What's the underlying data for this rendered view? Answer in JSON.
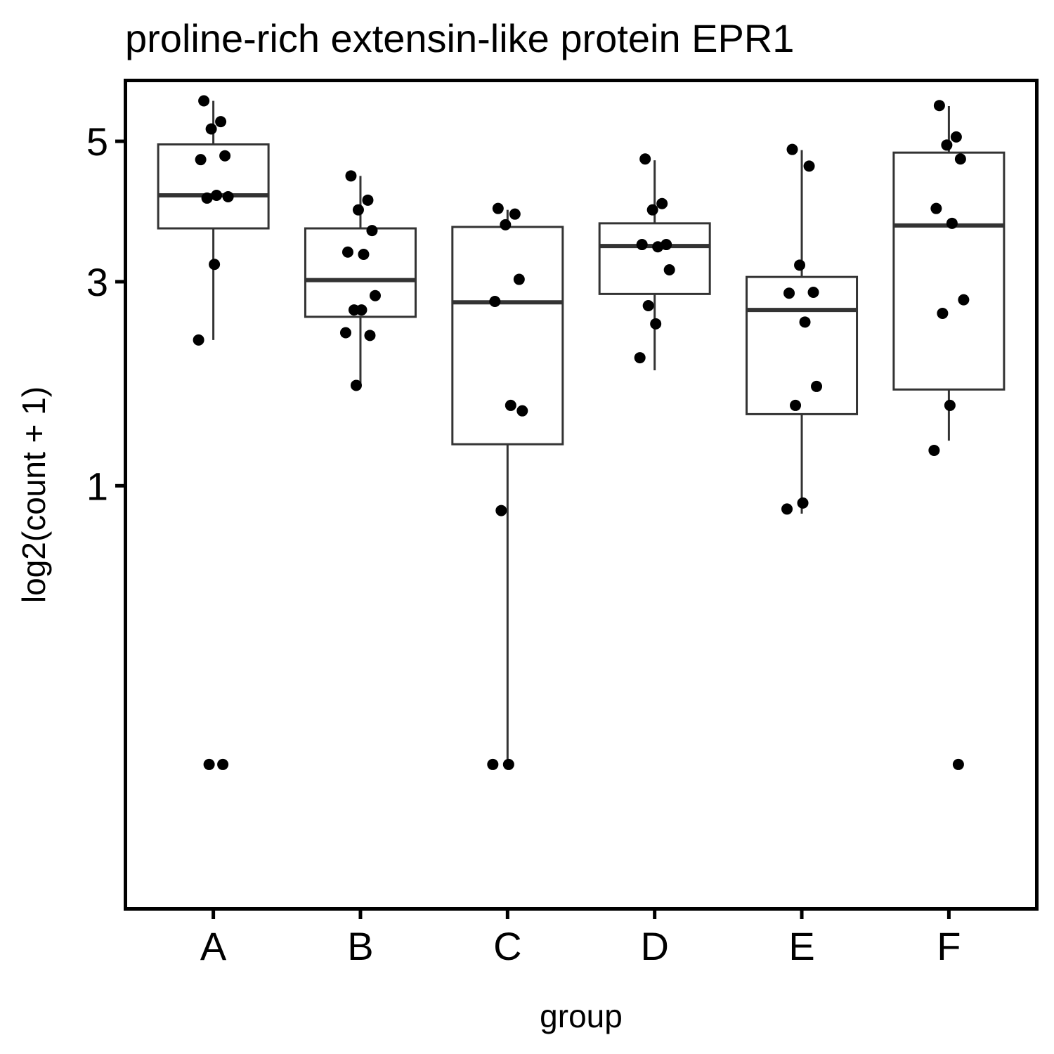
{
  "chart_data": {
    "type": "box",
    "title": "proline-rich extensin-like protein EPR1",
    "xlabel": "group",
    "ylabel": "log2(count + 1)",
    "categories": [
      "A",
      "B",
      "C",
      "D",
      "E",
      "F"
    ],
    "y_ticks": [
      1,
      3,
      5
    ],
    "ylim": [
      -0.27,
      6.03
    ],
    "scale": "sqrt",
    "grid": false,
    "legend": "none",
    "colors": {
      "box_stroke": "#333333",
      "point": "#000000",
      "panel_border": "#000000"
    },
    "boxes": [
      {
        "group": "A",
        "whisker_low": 2.32,
        "q1": 3.7,
        "median": 4.17,
        "q3": 4.95,
        "whisker_high": 5.67
      },
      {
        "group": "B",
        "whisker_low": 1.85,
        "q1": 2.58,
        "median": 3.02,
        "q3": 3.7,
        "whisker_high": 4.46
      },
      {
        "group": "C",
        "whisker_low": 0.0,
        "q1": 1.32,
        "median": 2.75,
        "q3": 3.72,
        "whisker_high": 3.96
      },
      {
        "group": "D",
        "whisker_low": 2.0,
        "q1": 2.85,
        "median": 3.46,
        "q3": 3.77,
        "whisker_high": 4.7
      },
      {
        "group": "E",
        "whisker_low": 0.81,
        "q1": 1.58,
        "median": 2.66,
        "q3": 3.06,
        "whisker_high": 4.86
      },
      {
        "group": "F",
        "whisker_low": 1.35,
        "q1": 1.81,
        "median": 3.74,
        "q3": 4.82,
        "whisker_high": 5.58
      }
    ],
    "points": [
      {
        "group": "A",
        "values": [
          5.67,
          5.32,
          5.2,
          4.77,
          4.71,
          4.17,
          4.15,
          4.13,
          3.22,
          2.32,
          0.0,
          0.0
        ]
      },
      {
        "group": "B",
        "values": [
          4.46,
          4.1,
          3.96,
          3.67,
          3.38,
          3.35,
          2.83,
          2.66,
          2.66,
          2.4,
          2.37,
          1.85
        ]
      },
      {
        "group": "C",
        "values": [
          3.98,
          3.9,
          3.75,
          3.03,
          2.76,
          1.66,
          1.61,
          0.83,
          0.0,
          0.0
        ]
      },
      {
        "group": "D",
        "values": [
          4.72,
          4.05,
          3.96,
          3.48,
          3.48,
          3.45,
          3.15,
          2.71,
          2.5,
          2.13
        ]
      },
      {
        "group": "E",
        "values": [
          4.87,
          4.61,
          3.21,
          2.87,
          2.86,
          2.52,
          1.84,
          1.66,
          0.88,
          0.84
        ]
      },
      {
        "group": "F",
        "values": [
          5.59,
          5.07,
          4.94,
          4.72,
          3.98,
          3.77,
          2.78,
          2.62,
          1.66,
          1.27,
          0.0
        ]
      }
    ]
  }
}
